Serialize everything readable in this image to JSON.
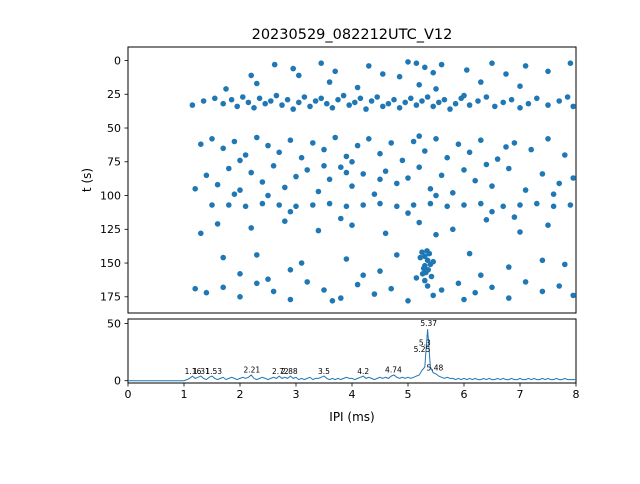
{
  "chart_data": [
    {
      "type": "scatter",
      "title": "20230529_082212UTC_V12",
      "xlabel": "",
      "ylabel": "t (s)",
      "xlim": [
        0,
        8
      ],
      "ylim": [
        -10,
        187
      ],
      "y_inverted": true,
      "yticks": [
        0,
        25,
        50,
        75,
        100,
        125,
        150,
        175
      ],
      "marker_color": "#1f77b4",
      "points": [
        [
          2.62,
          3
        ],
        [
          2.95,
          6
        ],
        [
          3.45,
          2
        ],
        [
          3.7,
          8
        ],
        [
          4.3,
          4
        ],
        [
          4.55,
          10
        ],
        [
          5.15,
          2
        ],
        [
          5.3,
          5
        ],
        [
          5.45,
          9
        ],
        [
          5.6,
          3
        ],
        [
          6.05,
          7
        ],
        [
          6.5,
          2
        ],
        [
          6.75,
          10
        ],
        [
          7.1,
          4
        ],
        [
          7.5,
          8
        ],
        [
          7.9,
          2
        ],
        [
          2.2,
          11
        ],
        [
          4.85,
          12
        ],
        [
          5.0,
          1
        ],
        [
          3.05,
          11
        ],
        [
          2.3,
          17
        ],
        [
          3.6,
          16
        ],
        [
          4.1,
          20
        ],
        [
          5.2,
          18
        ],
        [
          5.5,
          21
        ],
        [
          6.3,
          16
        ],
        [
          7.0,
          19
        ],
        [
          1.75,
          21
        ],
        [
          1.15,
          33
        ],
        [
          1.35,
          30
        ],
        [
          1.55,
          28
        ],
        [
          1.7,
          32
        ],
        [
          1.85,
          29
        ],
        [
          1.95,
          34
        ],
        [
          2.05,
          27
        ],
        [
          2.15,
          31
        ],
        [
          2.25,
          35
        ],
        [
          2.35,
          28
        ],
        [
          2.45,
          32
        ],
        [
          2.55,
          30
        ],
        [
          2.65,
          26
        ],
        [
          2.75,
          33
        ],
        [
          2.85,
          29
        ],
        [
          2.95,
          36
        ],
        [
          3.05,
          31
        ],
        [
          3.15,
          27
        ],
        [
          3.25,
          34
        ],
        [
          3.35,
          30
        ],
        [
          3.45,
          28
        ],
        [
          3.55,
          32
        ],
        [
          3.65,
          35
        ],
        [
          3.75,
          29
        ],
        [
          3.85,
          26
        ],
        [
          3.95,
          33
        ],
        [
          4.05,
          31
        ],
        [
          4.15,
          28
        ],
        [
          4.25,
          36
        ],
        [
          4.35,
          30
        ],
        [
          4.45,
          27
        ],
        [
          4.55,
          34
        ],
        [
          4.65,
          32
        ],
        [
          4.75,
          29
        ],
        [
          4.85,
          35
        ],
        [
          4.95,
          31
        ],
        [
          5.05,
          28
        ],
        [
          5.15,
          33
        ],
        [
          5.25,
          30
        ],
        [
          5.35,
          27
        ],
        [
          5.45,
          34
        ],
        [
          5.55,
          31
        ],
        [
          5.65,
          29
        ],
        [
          5.75,
          36
        ],
        [
          5.85,
          32
        ],
        [
          5.95,
          28
        ],
        [
          6.1,
          33
        ],
        [
          6.25,
          30
        ],
        [
          6.4,
          27
        ],
        [
          6.55,
          34
        ],
        [
          6.7,
          31
        ],
        [
          6.85,
          29
        ],
        [
          7.0,
          35
        ],
        [
          7.15,
          32
        ],
        [
          7.3,
          28
        ],
        [
          7.5,
          33
        ],
        [
          7.7,
          30
        ],
        [
          7.85,
          27
        ],
        [
          7.95,
          34
        ],
        [
          6.0,
          26
        ],
        [
          1.3,
          62
        ],
        [
          1.5,
          58
        ],
        [
          1.7,
          65
        ],
        [
          1.9,
          60
        ],
        [
          2.1,
          70
        ],
        [
          2.3,
          57
        ],
        [
          2.5,
          63
        ],
        [
          2.7,
          68
        ],
        [
          2.9,
          59
        ],
        [
          3.1,
          72
        ],
        [
          3.3,
          61
        ],
        [
          3.5,
          66
        ],
        [
          3.7,
          57
        ],
        [
          3.9,
          71
        ],
        [
          4.1,
          63
        ],
        [
          4.3,
          58
        ],
        [
          4.5,
          69
        ],
        [
          4.7,
          61
        ],
        [
          4.9,
          74
        ],
        [
          5.1,
          60
        ],
        [
          5.3,
          67
        ],
        [
          5.5,
          58
        ],
        [
          5.7,
          72
        ],
        [
          5.9,
          62
        ],
        [
          6.1,
          68
        ],
        [
          6.3,
          59
        ],
        [
          6.6,
          73
        ],
        [
          6.9,
          61
        ],
        [
          7.2,
          66
        ],
        [
          7.5,
          58
        ],
        [
          7.8,
          70
        ],
        [
          2.0,
          74
        ],
        [
          4.0,
          75
        ],
        [
          5.2,
          56
        ],
        [
          6.75,
          64
        ],
        [
          1.4,
          85
        ],
        [
          1.6,
          92
        ],
        [
          1.8,
          80
        ],
        [
          2.0,
          96
        ],
        [
          2.2,
          83
        ],
        [
          2.4,
          90
        ],
        [
          2.6,
          78
        ],
        [
          2.8,
          94
        ],
        [
          3.0,
          86
        ],
        [
          3.2,
          81
        ],
        [
          3.4,
          97
        ],
        [
          3.6,
          88
        ],
        [
          3.8,
          79
        ],
        [
          4.0,
          93
        ],
        [
          4.2,
          84
        ],
        [
          4.4,
          99
        ],
        [
          4.6,
          82
        ],
        [
          4.8,
          91
        ],
        [
          5.0,
          87
        ],
        [
          5.2,
          79
        ],
        [
          5.4,
          95
        ],
        [
          5.6,
          85
        ],
        [
          5.8,
          98
        ],
        [
          6.0,
          81
        ],
        [
          6.2,
          89
        ],
        [
          6.5,
          93
        ],
        [
          6.8,
          80
        ],
        [
          7.1,
          96
        ],
        [
          7.4,
          84
        ],
        [
          7.7,
          91
        ],
        [
          7.95,
          87
        ],
        [
          1.9,
          99
        ],
        [
          3.5,
          78
        ],
        [
          5.5,
          100
        ],
        [
          2.5,
          100
        ],
        [
          4.5,
          88
        ],
        [
          6.4,
          77
        ],
        [
          7.6,
          99
        ],
        [
          1.2,
          95
        ],
        [
          3.9,
          83
        ],
        [
          1.5,
          107
        ],
        [
          1.8,
          107
        ],
        [
          2.1,
          108
        ],
        [
          2.4,
          106
        ],
        [
          2.7,
          107
        ],
        [
          3.0,
          108
        ],
        [
          3.3,
          107
        ],
        [
          3.6,
          106
        ],
        [
          3.9,
          108
        ],
        [
          4.2,
          107
        ],
        [
          4.5,
          106
        ],
        [
          4.8,
          108
        ],
        [
          5.1,
          107
        ],
        [
          5.4,
          106
        ],
        [
          5.7,
          108
        ],
        [
          6.0,
          107
        ],
        [
          6.3,
          106
        ],
        [
          6.7,
          108
        ],
        [
          7.0,
          107
        ],
        [
          7.3,
          106
        ],
        [
          7.6,
          108
        ],
        [
          7.9,
          107
        ],
        [
          2.9,
          112
        ],
        [
          5.0,
          113
        ],
        [
          6.5,
          112
        ],
        [
          1.6,
          121
        ],
        [
          2.2,
          124
        ],
        [
          2.8,
          119
        ],
        [
          3.4,
          126
        ],
        [
          4.0,
          122
        ],
        [
          4.6,
          128
        ],
        [
          5.2,
          120
        ],
        [
          5.8,
          125
        ],
        [
          6.4,
          118
        ],
        [
          7.0,
          127
        ],
        [
          7.5,
          122
        ],
        [
          1.3,
          128
        ],
        [
          3.8,
          117
        ],
        [
          5.5,
          129
        ],
        [
          6.9,
          116
        ],
        [
          5.25,
          142
        ],
        [
          5.3,
          145
        ],
        [
          5.35,
          148
        ],
        [
          5.4,
          151
        ],
        [
          5.28,
          154
        ],
        [
          5.32,
          157
        ],
        [
          5.38,
          143
        ],
        [
          5.22,
          146
        ],
        [
          5.45,
          149
        ],
        [
          5.3,
          152
        ],
        [
          5.36,
          155
        ],
        [
          5.26,
          158
        ],
        [
          5.42,
          160
        ],
        [
          5.34,
          141
        ],
        [
          2.3,
          144
        ],
        [
          3.1,
          150
        ],
        [
          3.9,
          147
        ],
        [
          4.5,
          156
        ],
        [
          6.1,
          143
        ],
        [
          6.8,
          153
        ],
        [
          7.4,
          148
        ],
        [
          2.0,
          158
        ],
        [
          2.9,
          155
        ],
        [
          4.2,
          159
        ],
        [
          1.7,
          146
        ],
        [
          7.8,
          151
        ],
        [
          6.3,
          159
        ],
        [
          4.8,
          144
        ],
        [
          1.4,
          172
        ],
        [
          1.7,
          168
        ],
        [
          2.0,
          175
        ],
        [
          2.3,
          165
        ],
        [
          2.6,
          171
        ],
        [
          2.9,
          177
        ],
        [
          3.2,
          164
        ],
        [
          3.5,
          170
        ],
        [
          3.8,
          176
        ],
        [
          4.1,
          166
        ],
        [
          4.4,
          173
        ],
        [
          4.7,
          169
        ],
        [
          5.0,
          178
        ],
        [
          5.3,
          163
        ],
        [
          5.35,
          167
        ],
        [
          5.45,
          174
        ],
        [
          5.6,
          170
        ],
        [
          5.9,
          165
        ],
        [
          6.2,
          172
        ],
        [
          6.5,
          168
        ],
        [
          6.8,
          176
        ],
        [
          7.1,
          164
        ],
        [
          7.4,
          171
        ],
        [
          7.7,
          167
        ],
        [
          7.95,
          174
        ],
        [
          2.5,
          162
        ],
        [
          3.65,
          178
        ],
        [
          5.15,
          161
        ],
        [
          6.0,
          177
        ],
        [
          1.2,
          169
        ]
      ]
    },
    {
      "type": "line",
      "title": "",
      "xlabel": "IPI (ms)",
      "ylabel": "",
      "xlim": [
        0,
        8
      ],
      "ylim": [
        -2,
        54
      ],
      "yticks": [
        0,
        50
      ],
      "xticks": [
        0,
        1,
        2,
        3,
        4,
        5,
        6,
        7,
        8
      ],
      "line_color": "#1f77b4",
      "x_start": 0.0,
      "x_step": 0.05,
      "y": [
        0,
        0,
        0,
        0,
        0,
        0,
        0,
        0,
        0,
        0,
        0,
        0,
        0,
        0,
        0,
        0,
        0,
        0,
        0,
        0,
        0,
        1,
        2,
        4,
        2,
        3,
        4,
        2,
        1,
        3,
        4,
        2,
        1,
        2,
        3,
        1,
        2,
        3,
        2,
        1,
        2,
        3,
        2,
        3,
        5,
        2,
        1,
        2,
        3,
        2,
        1,
        2,
        3,
        2,
        4,
        2,
        3,
        2,
        4,
        2,
        3,
        1,
        2,
        1,
        2,
        3,
        1,
        2,
        2,
        3,
        4,
        2,
        1,
        2,
        1,
        2,
        1,
        2,
        3,
        2,
        2,
        1,
        2,
        3,
        4,
        2,
        3,
        2,
        1,
        2,
        3,
        2,
        3,
        2,
        4,
        5,
        3,
        2,
        3,
        2,
        3,
        2,
        3,
        4,
        5,
        9,
        12,
        45,
        12,
        7,
        6,
        4,
        3,
        2,
        3,
        2,
        2,
        1,
        2,
        1,
        2,
        1,
        2,
        1,
        2,
        1,
        1,
        2,
        1,
        2,
        1,
        1,
        2,
        1,
        2,
        1,
        1,
        2,
        1,
        1,
        2,
        1,
        1,
        2,
        1,
        2,
        1,
        1,
        2,
        1,
        2,
        1,
        1,
        2,
        1,
        1,
        2,
        1,
        1,
        1,
        1
      ],
      "annotations": [
        {
          "x": 1.16,
          "y": 6,
          "label": "1.16"
        },
        {
          "x": 1.31,
          "y": 6,
          "label": "1.31"
        },
        {
          "x": 1.53,
          "y": 6,
          "label": "1.53"
        },
        {
          "x": 2.21,
          "y": 7,
          "label": "2.21"
        },
        {
          "x": 2.72,
          "y": 6,
          "label": "2.72"
        },
        {
          "x": 2.88,
          "y": 6,
          "label": "2.88"
        },
        {
          "x": 3.5,
          "y": 6,
          "label": "3.5"
        },
        {
          "x": 4.2,
          "y": 6,
          "label": "4.2"
        },
        {
          "x": 4.74,
          "y": 7,
          "label": "4.74"
        },
        {
          "x": 5.25,
          "y": 25,
          "label": "5.25"
        },
        {
          "x": 5.3,
          "y": 31,
          "label": "5.3"
        },
        {
          "x": 5.37,
          "y": 48,
          "label": "5.37"
        },
        {
          "x": 5.48,
          "y": 9,
          "label": "5.48"
        }
      ]
    }
  ]
}
